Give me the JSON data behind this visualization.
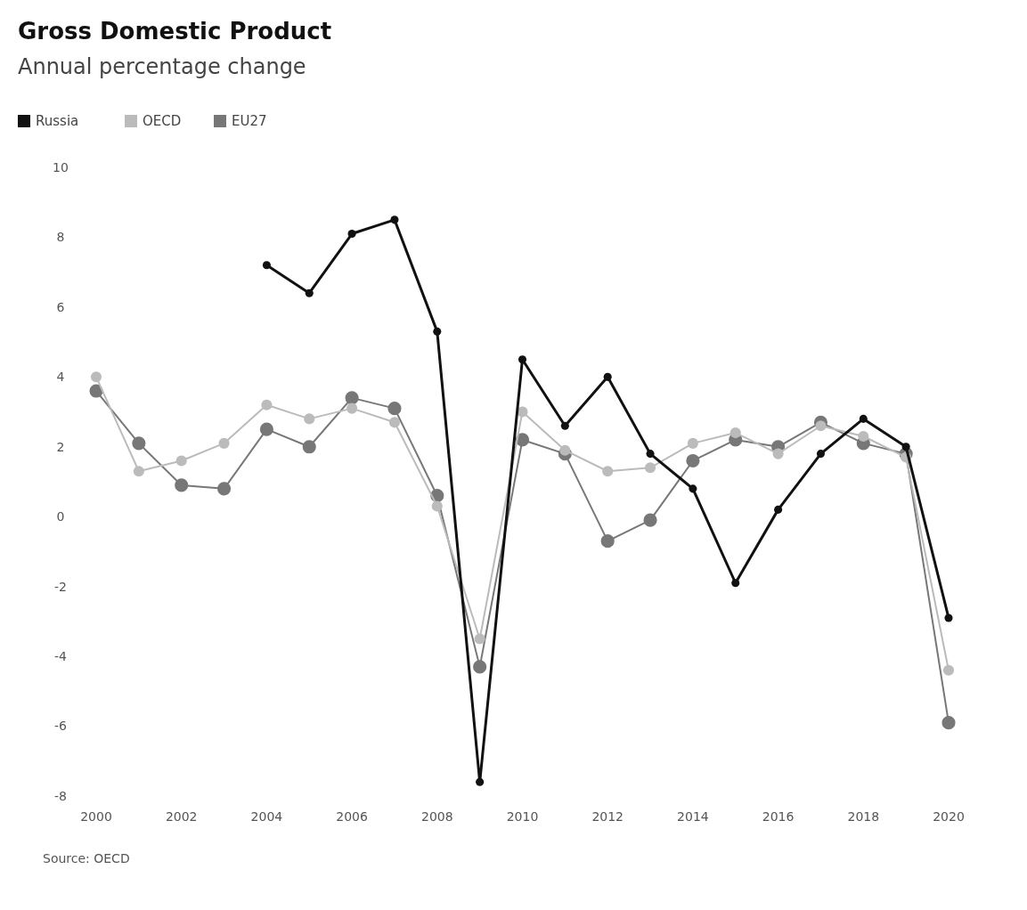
{
  "chart_data": {
    "type": "line",
    "title": "Gross Domestic Product",
    "subtitle": "Annual percentage change",
    "annotations": [
      "Source: OECD"
    ],
    "x": [
      2000,
      2001,
      2002,
      2003,
      2004,
      2005,
      2006,
      2007,
      2008,
      2009,
      2010,
      2011,
      2012,
      2013,
      2014,
      2015,
      2016,
      2017,
      2018,
      2019,
      2020
    ],
    "series": [
      {
        "name": "Russia",
        "color": "#111111",
        "values": [
          null,
          null,
          null,
          null,
          7.2,
          6.4,
          8.1,
          8.5,
          5.3,
          -7.6,
          4.5,
          2.6,
          4.0,
          1.8,
          0.8,
          -1.9,
          0.2,
          1.8,
          2.8,
          2.0,
          -2.9
        ]
      },
      {
        "name": "OECD",
        "color": "#bbbbbb",
        "values": [
          4.0,
          1.3,
          1.6,
          2.1,
          3.2,
          2.8,
          3.1,
          2.7,
          0.3,
          -3.5,
          3.0,
          1.9,
          1.3,
          1.4,
          2.1,
          2.4,
          1.8,
          2.6,
          2.3,
          1.7,
          -4.4
        ]
      },
      {
        "name": "EU27",
        "color": "#777777",
        "values": [
          3.6,
          2.1,
          0.9,
          0.8,
          2.5,
          2.0,
          3.4,
          3.1,
          0.6,
          -4.3,
          2.2,
          1.8,
          -0.7,
          -0.1,
          1.6,
          2.2,
          2.0,
          2.7,
          2.1,
          1.8,
          -5.9
        ]
      }
    ],
    "xlim": [
      2000,
      2020
    ],
    "xticks": [
      2000,
      2002,
      2004,
      2006,
      2008,
      2010,
      2012,
      2014,
      2016,
      2018,
      2020
    ],
    "ylim": [
      -8,
      10
    ],
    "yticks": [
      -8,
      -6,
      -4,
      -2,
      0,
      2,
      4,
      6,
      8,
      10
    ],
    "grid": false,
    "legend": "top left",
    "marker": "circle",
    "line_style": "solid"
  }
}
